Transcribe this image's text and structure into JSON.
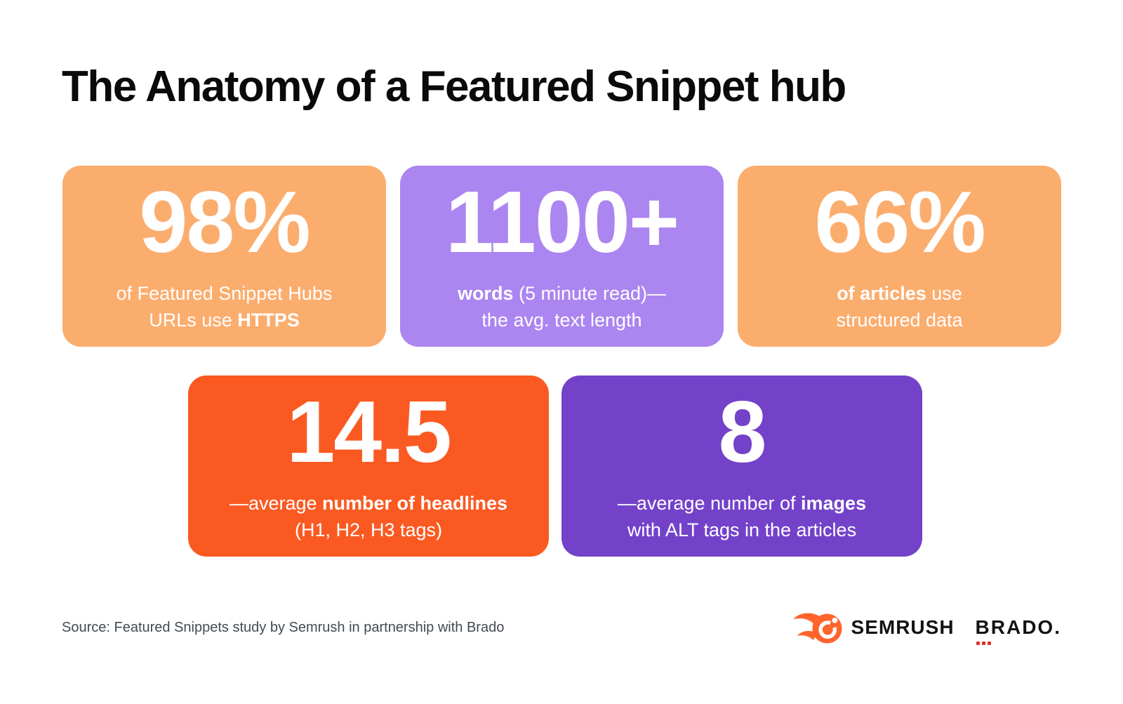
{
  "title": "The Anatomy of a Featured Snippet hub",
  "cards": [
    {
      "name": "https",
      "value": "98%",
      "color": "#FBAD6E",
      "lines": [
        [
          {
            "t": "of Featured Snippet Hubs",
            "b": false
          }
        ],
        [
          {
            "t": "URLs use ",
            "b": false
          },
          {
            "t": "HTTPS",
            "b": true
          }
        ]
      ]
    },
    {
      "name": "words",
      "value": "1100+",
      "color": "#AB85F0",
      "lines": [
        [
          {
            "t": "words",
            "b": true
          },
          {
            "t": " (5 minute read)—",
            "b": false
          }
        ],
        [
          {
            "t": "the avg. text length",
            "b": false
          }
        ]
      ]
    },
    {
      "name": "structured-data",
      "value": "66%",
      "color": "#FBAD6E",
      "lines": [
        [
          {
            "t": "of articles",
            "b": true
          },
          {
            "t": " use",
            "b": false
          }
        ],
        [
          {
            "t": "structured data",
            "b": false
          }
        ]
      ]
    },
    {
      "name": "headlines",
      "value": "14.5",
      "color": "#FA5A22",
      "lines": [
        [
          {
            "t": "—average ",
            "b": false
          },
          {
            "t": "number of headlines",
            "b": true
          }
        ],
        [
          {
            "t": "(H1, H2, H3 tags)",
            "b": false
          }
        ]
      ]
    },
    {
      "name": "images",
      "value": "8",
      "color": "#7342C9",
      "lines": [
        [
          {
            "t": "—average number of ",
            "b": false
          },
          {
            "t": "images",
            "b": true
          }
        ],
        [
          {
            "t": "with ALT tags in the articles",
            "b": false
          }
        ]
      ]
    }
  ],
  "footer": {
    "source": "Source: Featured Snippets study by Semrush in partnership with Brado",
    "semrush_label": "SEMRUSH",
    "brado_label": "BRADO."
  },
  "colors": {
    "background": "#FFFFFF",
    "title": "#0A0A0C",
    "source_text": "#434A54",
    "semrush_orange": "#FF642D",
    "logo_text": "#131316",
    "brado_red": "#E03226"
  },
  "chart_data": {
    "type": "table",
    "title": "The Anatomy of a Featured Snippet hub",
    "stats": [
      {
        "value": "98%",
        "label": "of Featured Snippet Hubs URLs use HTTPS"
      },
      {
        "value": "1100+",
        "label": "words (5 minute read)— the avg. text length"
      },
      {
        "value": "66%",
        "label": "of articles use structured data"
      },
      {
        "value": "14.5",
        "label": "—average number of headlines (H1, H2, H3 tags)"
      },
      {
        "value": "8",
        "label": "—average number of images with ALT tags in the articles"
      }
    ]
  }
}
